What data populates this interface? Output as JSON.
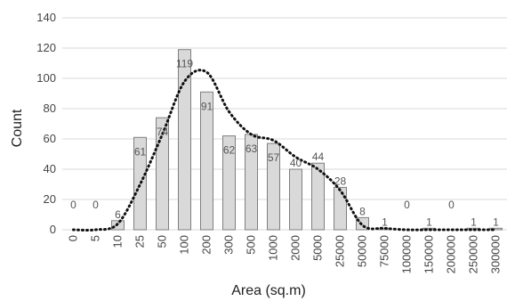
{
  "chart_data": {
    "type": "bar",
    "categories": [
      "0",
      "5",
      "10",
      "25",
      "50",
      "100",
      "200",
      "300",
      "500",
      "1000",
      "2000",
      "5000",
      "25000",
      "50000",
      "75000",
      "100000",
      "150000",
      "200000",
      "250000",
      "300000"
    ],
    "values": [
      0,
      0,
      6,
      61,
      74,
      119,
      91,
      62,
      63,
      57,
      40,
      44,
      28,
      8,
      1,
      0,
      1,
      0,
      1,
      1
    ],
    "data_labels": [
      "0",
      "0",
      "6",
      "61",
      "74",
      "119",
      "91",
      "62",
      "63",
      "57",
      "40",
      "44",
      "28",
      "8",
      "1",
      "0",
      "1",
      "0",
      "1",
      "1"
    ],
    "trend_line": {
      "style": "dotted",
      "values": [
        0,
        0,
        4,
        30,
        63,
        98,
        104,
        78,
        63,
        59,
        48,
        40,
        26,
        3,
        1,
        0,
        0,
        0,
        0,
        0
      ]
    },
    "xlabel": "Area (sq.m)",
    "ylabel": "Count",
    "ylim": [
      0,
      140
    ],
    "yticks": [
      "0",
      "20",
      "40",
      "60",
      "80",
      "100",
      "120",
      "140"
    ],
    "grid": true,
    "colors": {
      "bar_fill": "#d9d9d9",
      "bar_stroke": "#7f7f7f",
      "grid": "#d9d9d9",
      "trend": "#111111"
    }
  }
}
